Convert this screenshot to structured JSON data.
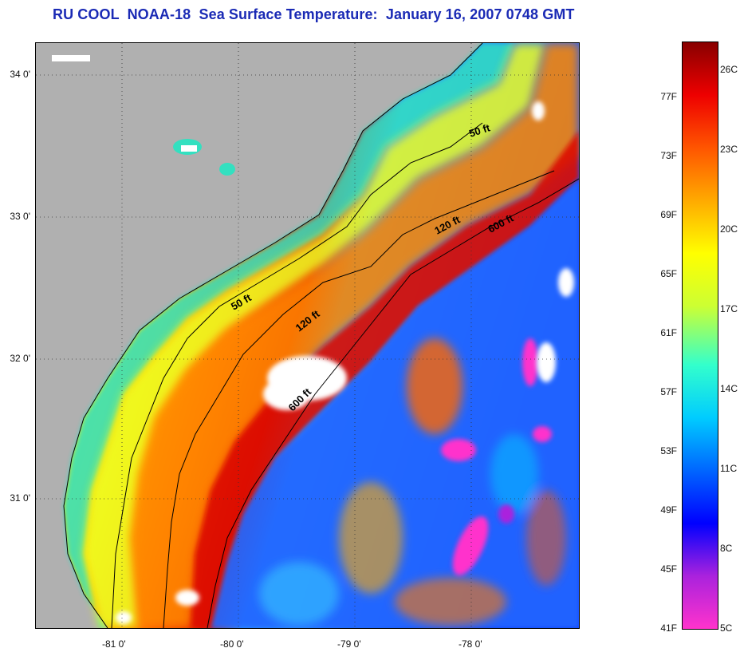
{
  "title": "RU COOL  NOAA-18  Sea Surface Temperature:  January 16, 2007 0748 GMT",
  "map": {
    "lat_labels": [
      {
        "text": "34 0'",
        "lat": 34.0
      },
      {
        "text": "33 0'",
        "lat": 33.0
      },
      {
        "text": "32 0'",
        "lat": 32.0
      },
      {
        "text": "31 0'",
        "lat": 31.0
      }
    ],
    "lon_labels": [
      {
        "text": "-81 0'",
        "lon": -81.0
      },
      {
        "text": "-80 0'",
        "lon": -80.0
      },
      {
        "text": "-79 0'",
        "lon": -79.0
      },
      {
        "text": "-78 0'",
        "lon": -78.0
      }
    ],
    "lat_range": [
      30.15,
      34.2
    ],
    "lon_range": [
      -81.65,
      -77.2
    ],
    "grid": "dotted",
    "depth_labels": {
      "d50_a": "50 ft",
      "d50_b": "50 ft",
      "d120_a": "120 ft",
      "d120_b": "120 ft",
      "d600_a": "600 ft",
      "d600_b": "600 ft"
    },
    "colors": {
      "land": "#b0b0b0",
      "cloud": "#ffffff"
    }
  },
  "colorbar": {
    "fahrenheit": [
      "77F",
      "73F",
      "69F",
      "65F",
      "61F",
      "57F",
      "53F",
      "49F",
      "45F",
      "41F"
    ],
    "celsius": [
      "26C",
      "23C",
      "20C",
      "17C",
      "14C",
      "11C",
      "8C",
      "5C"
    ],
    "temp_range_c": [
      5,
      27
    ],
    "colors": [
      "#ff33cc",
      "#aa22dd",
      "#0000ff",
      "#0066ff",
      "#00ccff",
      "#33ffcc",
      "#ccff33",
      "#ffff00",
      "#ffaa00",
      "#ff5500",
      "#ee0000",
      "#880000"
    ]
  }
}
